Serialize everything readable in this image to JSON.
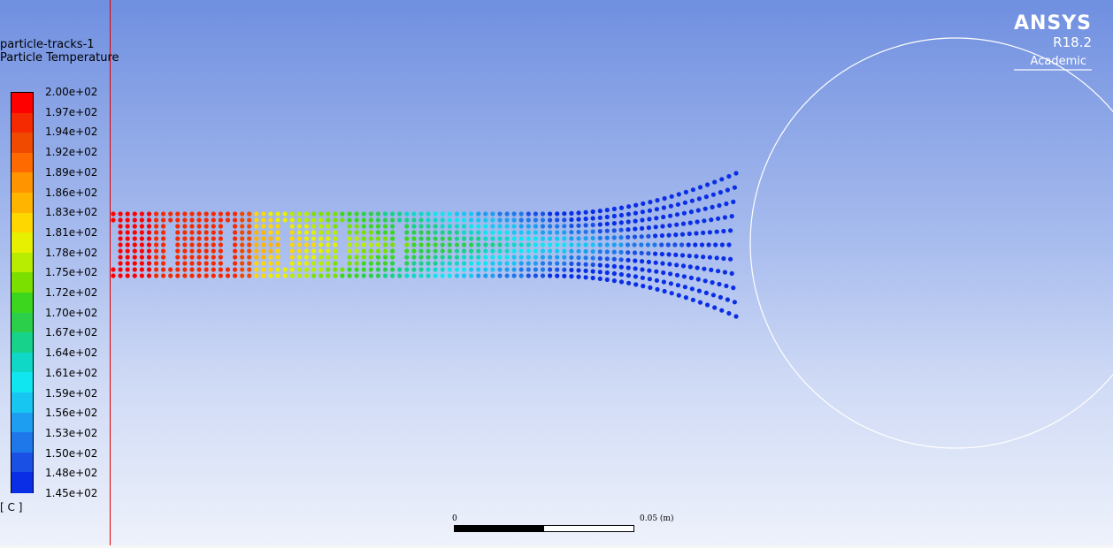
{
  "graphics": {
    "title": "particle-tracks-1",
    "quantity": "Particle Temperature",
    "unit": "[ C ]"
  },
  "legend": {
    "labels": [
      "2.00e+02",
      "1.97e+02",
      "1.94e+02",
      "1.92e+02",
      "1.89e+02",
      "1.86e+02",
      "1.83e+02",
      "1.81e+02",
      "1.78e+02",
      "1.75e+02",
      "1.72e+02",
      "1.70e+02",
      "1.67e+02",
      "1.64e+02",
      "1.61e+02",
      "1.59e+02",
      "1.56e+02",
      "1.53e+02",
      "1.50e+02",
      "1.48e+02",
      "1.45e+02"
    ],
    "colors": [
      "#ff0000",
      "#f52a00",
      "#ef4a00",
      "#ff6a00",
      "#ff9400",
      "#ffb400",
      "#ffd700",
      "#e7f000",
      "#b8ec00",
      "#7be000",
      "#3cd61e",
      "#2ccf4a",
      "#16d28a",
      "#0fd9c6",
      "#10e6f0",
      "#18c6f2",
      "#1e9ef0",
      "#1e78ea",
      "#1a50e4",
      "#0a2ee6"
    ]
  },
  "logo": {
    "brand": "ANSYS",
    "version": "R18.2",
    "edition": "Academic"
  },
  "scale": {
    "start": "0",
    "end": "0.05 (m)"
  }
}
